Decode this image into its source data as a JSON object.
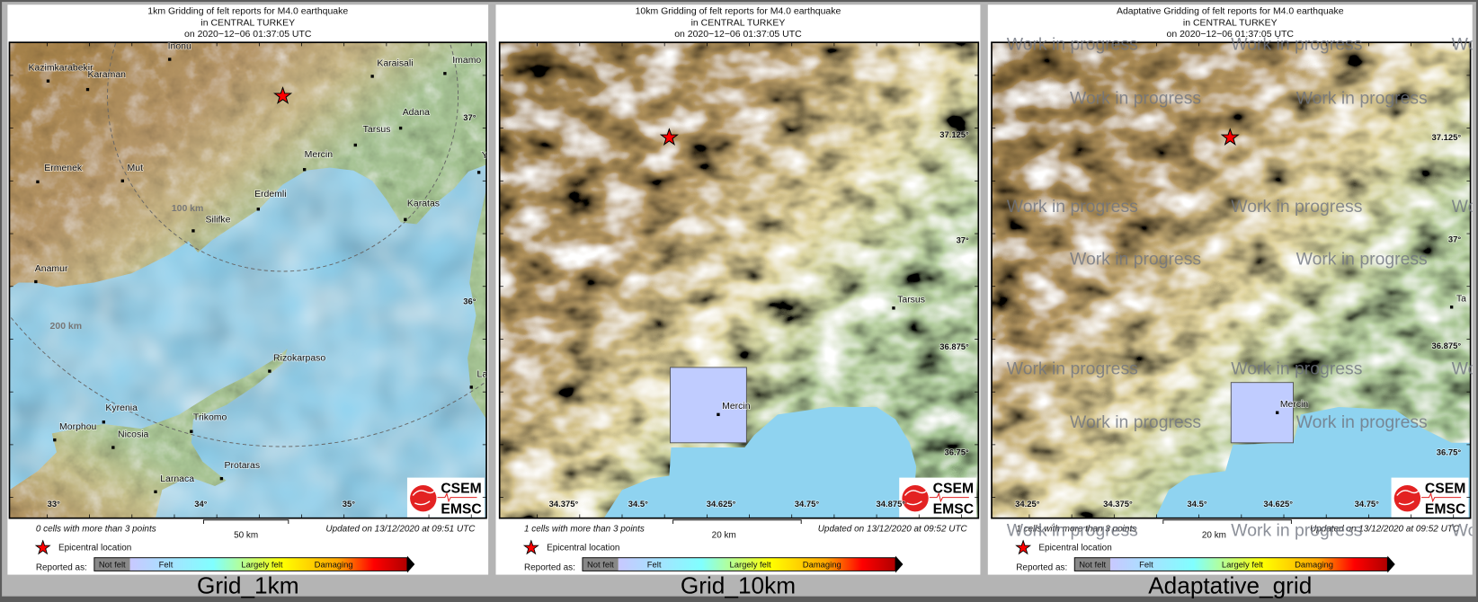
{
  "panels": [
    {
      "title_lines": [
        "1km Gridding of felt reports for M4.0 earthquake",
        "in CENTRAL TURKEY",
        "on  2020−12−06 01:37:05 UTC"
      ],
      "caption": "Grid_1km",
      "cells_note": "0 cells with more than 3 points",
      "scale_label": "50 km",
      "updated": "Updated on 13/12/2020 at 09:51 UTC",
      "lat_ticks": [
        "37°",
        "36°"
      ],
      "lon_ticks": [
        "33°",
        "34°",
        "35°"
      ],
      "ring_labels": [
        "100 km",
        "200 km"
      ],
      "cities": [
        "Inonu",
        "Kazimkarabekir",
        "Karaman",
        "Karaisali",
        "Imamo",
        "Adana",
        "Tarsus",
        "Mercin",
        "Yu",
        "Ermenek",
        "Mut",
        "Erdemli",
        "Karatas",
        "Silifke",
        "Anamur",
        "Rizokarpaso",
        "Lat",
        "Kyrenia",
        "Trikomo",
        "Morphou",
        "Nicosia",
        "Protaras",
        "Larnaca"
      ]
    },
    {
      "title_lines": [
        "10km Gridding of felt reports for M4.0 earthquake",
        "in CENTRAL TURKEY",
        "on  2020−12−06 01:37:05 UTC"
      ],
      "caption": "Grid_10km",
      "cells_note": "1 cells with more than 3 points",
      "scale_label": "20 km",
      "updated": "Updated on 13/12/2020 at 09:52 UTC",
      "lat_ticks": [
        "37.125°",
        "37°",
        "36.875°",
        "36.75°"
      ],
      "lon_ticks": [
        "34.375°",
        "34.5°",
        "34.625°",
        "34.75°",
        "34.875°"
      ],
      "cities": [
        "Tarsus",
        "Mercin"
      ]
    },
    {
      "title_lines": [
        "Adaptative Gridding of felt reports for M4.0 earthquake",
        "in CENTRAL TURKEY",
        "on  2020−12−06 01:37:05 UTC"
      ],
      "caption": "Adaptative_grid",
      "cells_note": "1 cells with more than 3 points",
      "scale_label": "20 km",
      "updated": "Updated on 13/12/2020 at 09:52 UTC",
      "lat_ticks": [
        "37.125°",
        "37°",
        "36.875°",
        "36.75°"
      ],
      "lon_ticks": [
        "34.25°",
        "34.375°",
        "34.5°",
        "34.625°",
        "34.75°"
      ],
      "cities": [
        "Ta",
        "Mercin"
      ],
      "watermark": "Work in progress"
    }
  ],
  "legend": {
    "epicentral": "Epicentral location",
    "reported_as": "Reported as:",
    "categories": [
      "Not felt",
      "Felt",
      "Largely felt",
      "Damaging"
    ],
    "colors": {
      "not_felt": "#888888",
      "felt_start": "#c8c8ff",
      "felt": "#80ffff",
      "largely_felt": "#ffff00",
      "damaging": "#ffa500",
      "severe": "#ff0000",
      "max": "#b00000"
    }
  },
  "logo": {
    "top": "CSEM",
    "bottom": "EMSC"
  },
  "colors": {
    "epicenter": "#ff0000",
    "grid_cell": "#c0ccff",
    "sea": "#8fd3f0",
    "background": "#b4b4b4"
  }
}
